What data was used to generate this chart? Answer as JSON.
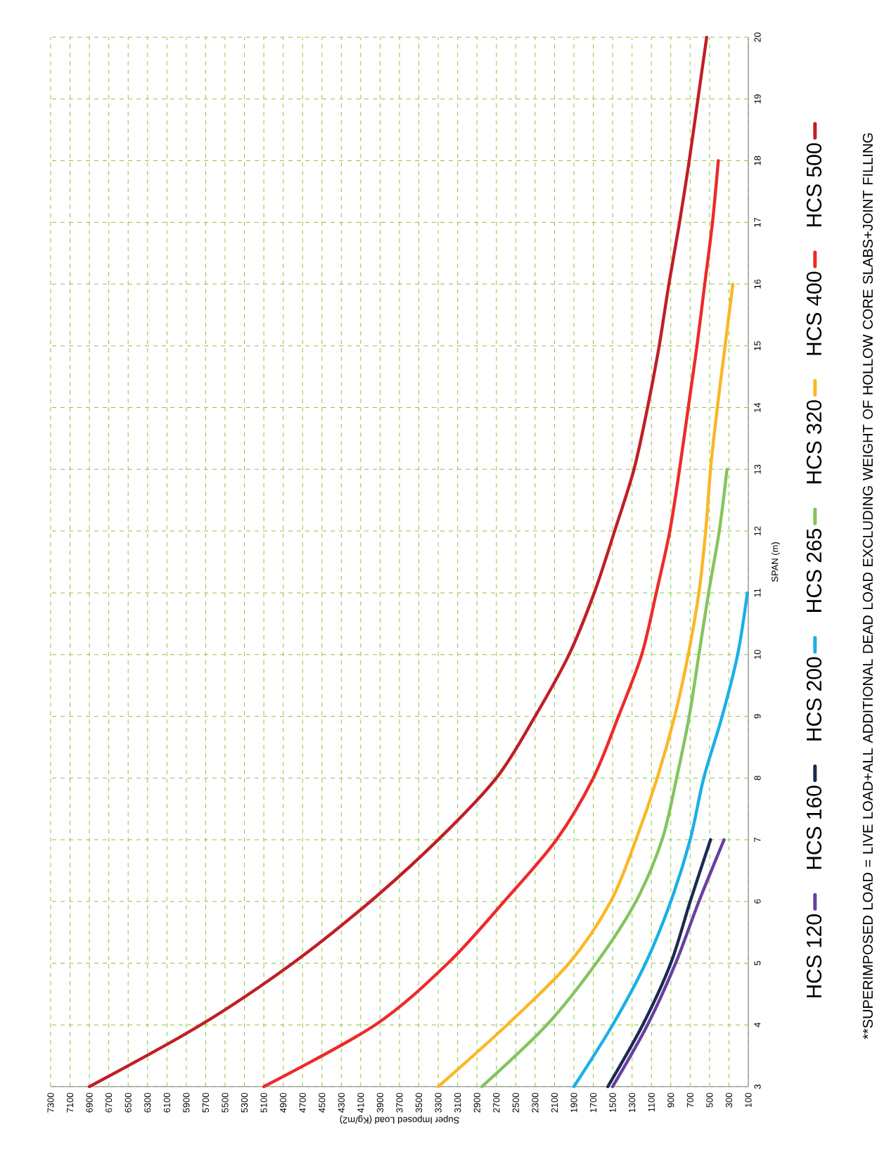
{
  "chart_data": {
    "type": "line",
    "xlabel": "Super Imposed  Load (Kg/m2)",
    "ylabel": "SPAN (m)",
    "annotations": [
      "**SUPERIMPOSED LOAD = LIVE LOAD+ALL ADDITIONAL DEAD LOAD EXCLUDING WEIGHT OF HOLLOW CORE SLABS+JOINT FILLING"
    ],
    "xlim": [
      7300,
      100
    ],
    "xticks": [
      7300,
      7100,
      6900,
      6700,
      6500,
      6300,
      6100,
      5900,
      5700,
      5500,
      5300,
      5100,
      4900,
      4700,
      4500,
      4300,
      4100,
      3900,
      3700,
      3500,
      3300,
      3100,
      2900,
      2700,
      2500,
      2300,
      2100,
      1900,
      1700,
      1500,
      1300,
      1100,
      900,
      700,
      500,
      300,
      100
    ],
    "ylim": [
      3,
      20
    ],
    "yticks": [
      3,
      4,
      5,
      6,
      7,
      8,
      9,
      10,
      11,
      12,
      13,
      14,
      15,
      16,
      17,
      18,
      19,
      20
    ],
    "grid": true,
    "legend": "right",
    "marker": "none",
    "line_style": "solid",
    "series": [
      {
        "name": "HCS 120",
        "color": "#6a3fa0",
        "x": [
          1500,
          1140,
          850,
          610,
          350
        ],
        "values": [
          3,
          4,
          5,
          6,
          7
        ]
      },
      {
        "name": "HCS 160",
        "color": "#1b2a50",
        "x": [
          1550,
          1190,
          900,
          700,
          490
        ],
        "values": [
          3,
          4,
          5,
          6,
          7
        ]
      },
      {
        "name": "HCS 200",
        "color": "#1ab0e6",
        "x": [
          1900,
          1500,
          1160,
          900,
          700,
          560,
          370,
          210,
          110
        ],
        "values": [
          3,
          4,
          5,
          6,
          7,
          8,
          9,
          10,
          11
        ]
      },
      {
        "name": "HCS 265",
        "color": "#84c45e",
        "x": [
          2850,
          2180,
          1670,
          1260,
          990,
          840,
          710,
          610,
          510,
          400,
          320
        ],
        "values": [
          3,
          4,
          5,
          6,
          7,
          8,
          9,
          10,
          11,
          12,
          13
        ]
      },
      {
        "name": "HCS 320",
        "color": "#fbb726",
        "x": [
          3300,
          2590,
          1950,
          1520,
          1260,
          1040,
          860,
          720,
          610,
          540,
          490,
          420,
          340,
          260
        ],
        "values": [
          3,
          4,
          5,
          6,
          7,
          8,
          9,
          10,
          11,
          12,
          13,
          14,
          15,
          16
        ]
      },
      {
        "name": "HCS 400",
        "color": "#ee2a2a",
        "x": [
          5100,
          3950,
          3200,
          2620,
          2080,
          1700,
          1440,
          1200,
          1050,
          910,
          810,
          720,
          630,
          550,
          470,
          410
        ],
        "values": [
          3,
          4,
          5,
          6,
          7,
          8,
          9,
          10,
          11,
          12,
          13,
          14,
          15,
          16,
          17,
          18
        ]
      },
      {
        "name": "HCS 500",
        "color": "#c01f26",
        "x": [
          6900,
          5750,
          4800,
          4000,
          3300,
          2700,
          2300,
          1950,
          1690,
          1480,
          1280,
          1140,
          1020,
          920,
          810,
          710,
          620,
          530
        ],
        "values": [
          3,
          4,
          5,
          6,
          7,
          8,
          9,
          10,
          11,
          12,
          13,
          14,
          15,
          16,
          17,
          18,
          19,
          20
        ]
      }
    ]
  }
}
